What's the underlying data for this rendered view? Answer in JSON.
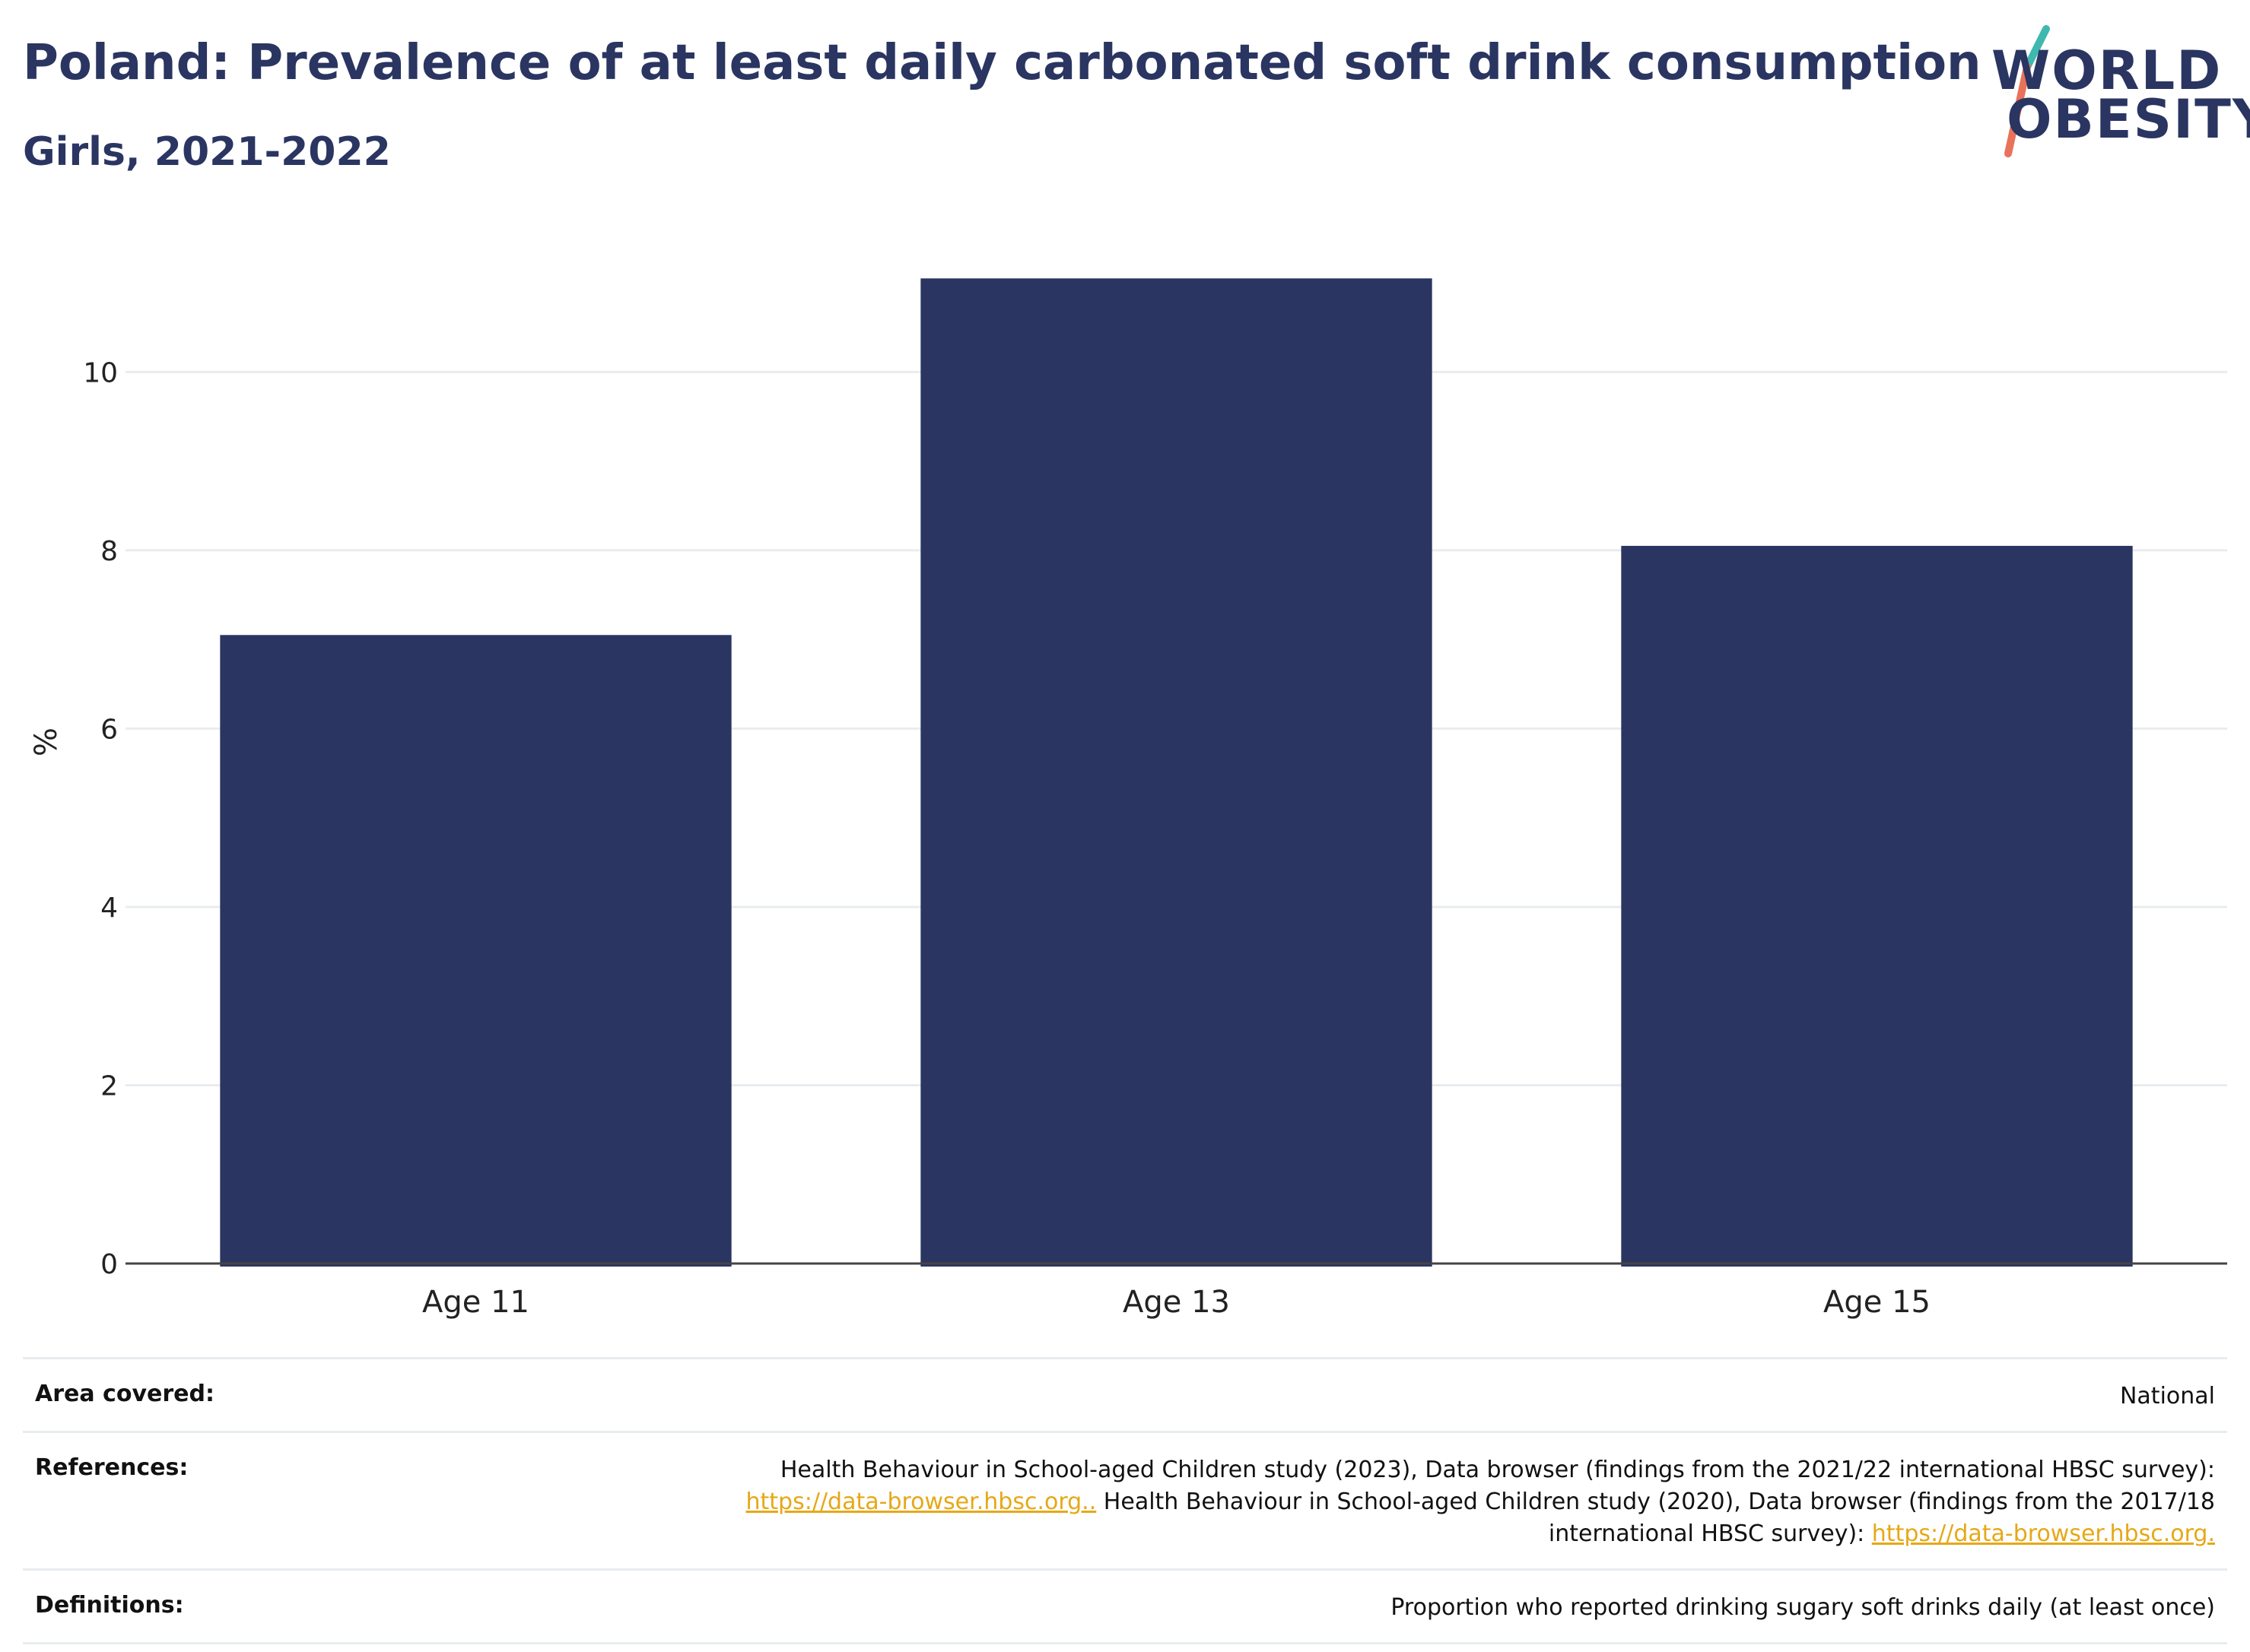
{
  "title": "Poland: Prevalence of at least daily carbonated soft drink consumption",
  "subtitle": "Girls, 2021-2022",
  "logo": {
    "line1": "WORLD",
    "line2": "OBESITY"
  },
  "colors": {
    "bar": "#2a3561",
    "title": "#2a3561",
    "link": "#e6a817",
    "grid": "#e9ecef",
    "logo_teal": "#3fb8b0",
    "logo_coral": "#e8735a"
  },
  "chart_data": {
    "type": "bar",
    "categories": [
      "Age 11",
      "Age 13",
      "Age 15"
    ],
    "values": [
      7.05,
      11.05,
      8.05
    ],
    "ylabel": "%",
    "yticks": [
      "0",
      "2",
      "4",
      "6",
      "8",
      "10"
    ],
    "ylim": [
      0,
      11.7
    ],
    "grid": true
  },
  "info": {
    "area": {
      "label": "Area covered:",
      "value": "National"
    },
    "references": {
      "label": "References:",
      "line1": "Health Behaviour in School-aged Children study (2023), Data browser (findings from the 2021/22 international HBSC survey):",
      "link1": "https://data-browser.hbsc.org..",
      "line2": " Health Behaviour in School-aged Children study (2020), Data browser (findings from the 2017/18",
      "line3": "international HBSC survey): ",
      "link2": "https://data-browser.hbsc.org."
    },
    "definitions": {
      "label": "Definitions:",
      "value": "Proportion who reported drinking sugary soft drinks daily (at least once)"
    }
  }
}
